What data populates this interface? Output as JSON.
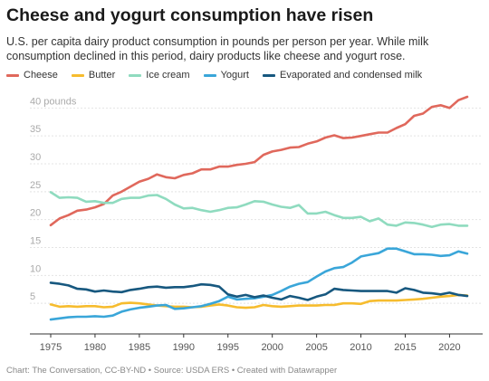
{
  "title": "Cheese and yogurt consumption have risen",
  "subtitle": "U.S. per capita dairy product consumption in pounds per person per year. While milk consumption declined in this period, dairy products like cheese and yogurt rose.",
  "footer": "Chart: The Conversation, CC-BY-ND • Source: USDA ERS • Created with Datawrapper",
  "chart_data": {
    "type": "line",
    "title": "Cheese and yogurt consumption have risen",
    "xlabel": "",
    "ylabel": "",
    "y_unit_label": "40 pounds",
    "xlim": [
      1975,
      2022
    ],
    "ylim": [
      0,
      42
    ],
    "x_ticks": [
      1975,
      1980,
      1985,
      1990,
      1995,
      2000,
      2005,
      2010,
      2015,
      2020
    ],
    "y_ticks": [
      5,
      10,
      15,
      20,
      25,
      30,
      35,
      40
    ],
    "grid": true,
    "legend_position": "top-left",
    "x": [
      1975,
      1976,
      1977,
      1978,
      1979,
      1980,
      1981,
      1982,
      1983,
      1984,
      1985,
      1986,
      1987,
      1988,
      1989,
      1990,
      1991,
      1992,
      1993,
      1994,
      1995,
      1996,
      1997,
      1998,
      1999,
      2000,
      2001,
      2002,
      2003,
      2004,
      2005,
      2006,
      2007,
      2008,
      2009,
      2010,
      2011,
      2012,
      2013,
      2014,
      2015,
      2016,
      2017,
      2018,
      2019,
      2020,
      2021,
      2022
    ],
    "series": [
      {
        "name": "Cheese",
        "color": "#e0685c",
        "values": [
          19.0,
          20.2,
          20.8,
          21.6,
          21.8,
          22.2,
          22.8,
          24.3,
          25.0,
          25.9,
          26.8,
          27.3,
          28.1,
          27.6,
          27.4,
          28.0,
          28.3,
          29.0,
          29.0,
          29.5,
          29.5,
          29.8,
          30.0,
          30.3,
          31.6,
          32.2,
          32.5,
          32.9,
          33.0,
          33.6,
          34.0,
          34.7,
          35.1,
          34.6,
          34.7,
          35.0,
          35.3,
          35.6,
          35.6,
          36.4,
          37.1,
          38.6,
          39.0,
          40.2,
          40.5,
          40.0,
          41.4,
          42.0
        ]
      },
      {
        "name": "Butter",
        "color": "#f6bc2e",
        "values": [
          4.8,
          4.4,
          4.5,
          4.4,
          4.5,
          4.5,
          4.3,
          4.4,
          5.0,
          5.1,
          5.0,
          4.8,
          4.6,
          4.5,
          4.4,
          4.4,
          4.3,
          4.4,
          4.6,
          4.8,
          4.6,
          4.3,
          4.2,
          4.3,
          4.7,
          4.5,
          4.4,
          4.5,
          4.6,
          4.6,
          4.6,
          4.7,
          4.7,
          5.0,
          5.0,
          4.9,
          5.4,
          5.5,
          5.5,
          5.5,
          5.6,
          5.7,
          5.8,
          6.0,
          6.2,
          6.3,
          6.5,
          6.4
        ]
      },
      {
        "name": "Ice cream",
        "color": "#8fdbbf",
        "values": [
          24.9,
          23.9,
          24.0,
          23.9,
          23.2,
          23.3,
          23.0,
          23.0,
          23.7,
          23.9,
          23.9,
          24.3,
          24.4,
          23.7,
          22.7,
          22.0,
          22.1,
          21.7,
          21.4,
          21.7,
          22.1,
          22.2,
          22.7,
          23.3,
          23.2,
          22.7,
          22.3,
          22.1,
          22.6,
          21.1,
          21.1,
          21.4,
          20.8,
          20.3,
          20.3,
          20.5,
          19.7,
          20.2,
          19.1,
          18.9,
          19.5,
          19.4,
          19.1,
          18.7,
          19.1,
          19.2,
          18.9,
          18.9
        ]
      },
      {
        "name": "Yogurt",
        "color": "#3aa6d9",
        "values": [
          2.1,
          2.3,
          2.5,
          2.6,
          2.6,
          2.7,
          2.6,
          2.8,
          3.5,
          3.9,
          4.2,
          4.4,
          4.6,
          4.7,
          4.0,
          4.1,
          4.3,
          4.5,
          4.9,
          5.4,
          6.2,
          5.7,
          5.8,
          5.9,
          6.2,
          6.5,
          7.2,
          8.0,
          8.5,
          8.8,
          9.8,
          10.7,
          11.3,
          11.5,
          12.3,
          13.4,
          13.7,
          14.0,
          14.8,
          14.8,
          14.3,
          13.8,
          13.8,
          13.7,
          13.5,
          13.6,
          14.3,
          13.9
        ]
      },
      {
        "name": "Evaporated and condensed milk",
        "color": "#17587f",
        "values": [
          8.7,
          8.5,
          8.2,
          7.6,
          7.5,
          7.1,
          7.3,
          7.1,
          7.0,
          7.4,
          7.6,
          7.9,
          8.0,
          7.8,
          7.9,
          7.9,
          8.1,
          8.4,
          8.3,
          8.0,
          6.6,
          6.2,
          6.5,
          6.1,
          6.4,
          6.0,
          5.7,
          6.3,
          6.0,
          5.6,
          6.2,
          6.6,
          7.6,
          7.4,
          7.3,
          7.2,
          7.2,
          7.2,
          7.2,
          6.9,
          7.7,
          7.4,
          6.9,
          6.8,
          6.6,
          6.9,
          6.5,
          6.3
        ]
      }
    ]
  }
}
